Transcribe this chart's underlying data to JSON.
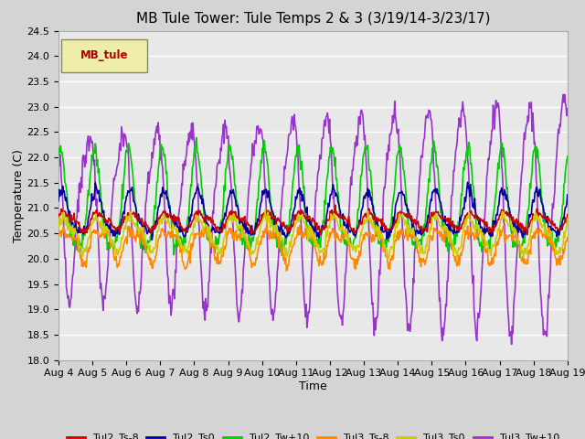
{
  "title": "MB Tule Tower: Tule Temps 2 & 3 (3/19/14-3/23/17)",
  "xlabel": "Time",
  "ylabel": "Temperature (C)",
  "ylim": [
    18.0,
    24.5
  ],
  "yticks": [
    18.0,
    18.5,
    19.0,
    19.5,
    20.0,
    20.5,
    21.0,
    21.5,
    22.0,
    22.5,
    23.0,
    23.5,
    24.0,
    24.5
  ],
  "xlim": [
    0,
    15
  ],
  "xtick_labels": [
    "Aug 4",
    "Aug 5",
    "Aug 6",
    "Aug 7",
    "Aug 8",
    "Aug 9",
    "Aug 10",
    "Aug 11",
    "Aug 12",
    "Aug 13",
    "Aug 14",
    "Aug 15",
    "Aug 16",
    "Aug 17",
    "Aug 18",
    "Aug 19"
  ],
  "series": {
    "Tul2_Ts-8": {
      "color": "#cc0000",
      "lw": 1.2
    },
    "Tul2_Ts0": {
      "color": "#000099",
      "lw": 1.2
    },
    "Tul2_Tw+10": {
      "color": "#00cc00",
      "lw": 1.2
    },
    "Tul3_Ts-8": {
      "color": "#ff8800",
      "lw": 1.2
    },
    "Tul3_Ts0": {
      "color": "#cccc00",
      "lw": 1.2
    },
    "Tul3_Tw+10": {
      "color": "#9933cc",
      "lw": 1.2
    }
  },
  "legend_label": "MB_tule",
  "legend_label_color": "#aa0000",
  "legend_box_facecolor": "#eeeeaa",
  "legend_box_edgecolor": "#888866",
  "fig_facecolor": "#d4d4d4",
  "plot_facecolor": "#e8e8e8",
  "grid_color": "#ffffff",
  "title_fontsize": 11,
  "axis_label_fontsize": 9,
  "tick_fontsize": 8,
  "legend_fontsize": 8
}
